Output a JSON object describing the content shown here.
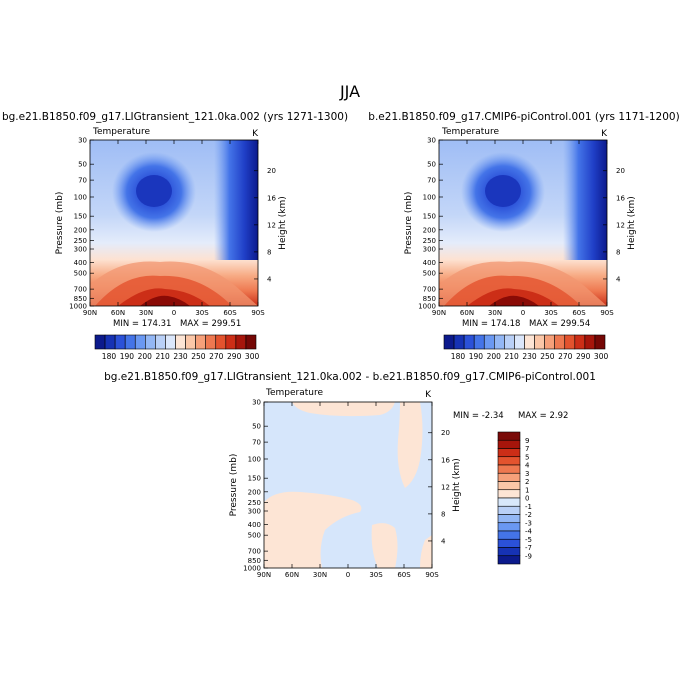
{
  "page": {
    "season": "JJA"
  },
  "chart_data": [
    {
      "type": "heatmap",
      "title": "bg.e21.B1850.f09_g17.LIGtransient_121.0ka.002 (yrs 1271-1300)",
      "left_label": "Temperature",
      "right_label": "K",
      "ylabel": "Pressure (mb)",
      "ylabel_right": "Height (km)",
      "x_ticks": [
        "90N",
        "60N",
        "30N",
        "0",
        "30S",
        "60S",
        "90S"
      ],
      "y_ticks": [
        "30",
        "50",
        "70",
        "100",
        "150",
        "200",
        "250",
        "300",
        "400",
        "500",
        "700",
        "850",
        "1000"
      ],
      "height_ticks": [
        "20",
        "16",
        "12",
        "8",
        "4"
      ],
      "min_label": "MIN = 174.31",
      "max_label": "MAX = 299.51",
      "colorbar_labels": [
        "180",
        "190",
        "200",
        "210",
        "230",
        "250",
        "270",
        "290",
        "300"
      ],
      "value_range": [
        174.31,
        299.51
      ]
    },
    {
      "type": "heatmap",
      "title": "b.e21.B1850.f09_g17.CMIP6-piControl.001 (yrs 1171-1200)",
      "left_label": "Temperature",
      "right_label": "K",
      "ylabel": "Pressure (mb)",
      "ylabel_right": "Height (km)",
      "x_ticks": [
        "90N",
        "60N",
        "30N",
        "0",
        "30S",
        "60S",
        "90S"
      ],
      "y_ticks": [
        "30",
        "50",
        "70",
        "100",
        "150",
        "200",
        "250",
        "300",
        "400",
        "500",
        "700",
        "850",
        "1000"
      ],
      "height_ticks": [
        "20",
        "16",
        "12",
        "8",
        "4"
      ],
      "min_label": "MIN = 174.18",
      "max_label": "MAX = 299.54",
      "colorbar_labels": [
        "180",
        "190",
        "200",
        "210",
        "230",
        "250",
        "270",
        "290",
        "300"
      ],
      "value_range": [
        174.18,
        299.54
      ]
    },
    {
      "type": "heatmap",
      "title": "bg.e21.B1850.f09_g17.LIGtransient_121.0ka.002 - b.e21.B1850.f09_g17.CMIP6-piControl.001",
      "left_label": "Temperature",
      "right_label": "K",
      "ylabel": "Pressure (mb)",
      "ylabel_right": "Height (km)",
      "x_ticks": [
        "90N",
        "60N",
        "30N",
        "0",
        "30S",
        "60S",
        "90S"
      ],
      "y_ticks": [
        "30",
        "50",
        "70",
        "100",
        "150",
        "200",
        "250",
        "300",
        "400",
        "500",
        "700",
        "850",
        "1000"
      ],
      "height_ticks": [
        "20",
        "16",
        "12",
        "8",
        "4"
      ],
      "min_label": "MIN = -2.34",
      "max_label": "MAX = 2.92",
      "colorbar_labels": [
        "9",
        "7",
        "5",
        "4",
        "3",
        "2",
        "1",
        "0",
        "-1",
        "-2",
        "-3",
        "-4",
        "-5",
        "-7",
        "-9"
      ],
      "value_range": [
        -2.34,
        2.92
      ]
    }
  ],
  "colors": {
    "abs_scale": [
      "#0c1a8c",
      "#1632b4",
      "#2b51d8",
      "#4474e8",
      "#6a98f2",
      "#93b7f5",
      "#b9d0f7",
      "#dbe7fb",
      "#fde5d5",
      "#fbc7a8",
      "#f6a07a",
      "#ee7850",
      "#e3532e",
      "#cc2e17",
      "#a6150b",
      "#750705"
    ],
    "diff_scale": [
      "#7a0a08",
      "#a6150b",
      "#cc2e17",
      "#e3532e",
      "#ee7850",
      "#f6a07a",
      "#fbc7a8",
      "#fde5d5",
      "#d8e8fb",
      "#b9d0f7",
      "#93b7f5",
      "#6a98f2",
      "#4474e8",
      "#2b51d8",
      "#1632b4",
      "#0c1a8c"
    ]
  }
}
